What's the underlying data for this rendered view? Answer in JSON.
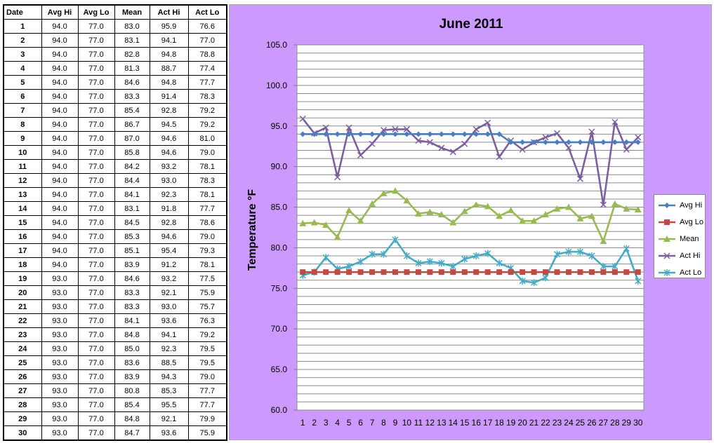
{
  "table": {
    "headers": [
      "Date",
      "Avg Hi",
      "Avg Lo",
      "Mean",
      "Act Hi",
      "Act Lo"
    ],
    "rows": [
      [
        "1",
        "94.0",
        "77.0",
        "83.0",
        "95.9",
        "76.6"
      ],
      [
        "2",
        "94.0",
        "77.0",
        "83.1",
        "94.1",
        "77.0"
      ],
      [
        "3",
        "94.0",
        "77.0",
        "82.8",
        "94.8",
        "78.8"
      ],
      [
        "4",
        "94.0",
        "77.0",
        "81.3",
        "88.7",
        "77.4"
      ],
      [
        "5",
        "94.0",
        "77.0",
        "84.6",
        "94.8",
        "77.7"
      ],
      [
        "6",
        "94.0",
        "77.0",
        "83.3",
        "91.4",
        "78.3"
      ],
      [
        "7",
        "94.0",
        "77.0",
        "85.4",
        "92.8",
        "79.2"
      ],
      [
        "8",
        "94.0",
        "77.0",
        "86.7",
        "94.5",
        "79.2"
      ],
      [
        "9",
        "94.0",
        "77.0",
        "87.0",
        "94.6",
        "81.0"
      ],
      [
        "10",
        "94.0",
        "77.0",
        "85.8",
        "94.6",
        "79.0"
      ],
      [
        "11",
        "94.0",
        "77.0",
        "84.2",
        "93.2",
        "78.1"
      ],
      [
        "12",
        "94.0",
        "77.0",
        "84.4",
        "93.0",
        "78.3"
      ],
      [
        "13",
        "94.0",
        "77.0",
        "84.1",
        "92.3",
        "78.1"
      ],
      [
        "14",
        "94.0",
        "77.0",
        "83.1",
        "91.8",
        "77.7"
      ],
      [
        "15",
        "94.0",
        "77.0",
        "84.5",
        "92.8",
        "78.6"
      ],
      [
        "16",
        "94.0",
        "77.0",
        "85.3",
        "94.6",
        "79.0"
      ],
      [
        "17",
        "94.0",
        "77.0",
        "85.1",
        "95.4",
        "79.3"
      ],
      [
        "18",
        "94.0",
        "77.0",
        "83.9",
        "91.2",
        "78.1"
      ],
      [
        "19",
        "93.0",
        "77.0",
        "84.6",
        "93.2",
        "77.5"
      ],
      [
        "20",
        "93.0",
        "77.0",
        "83.3",
        "92.1",
        "75.9"
      ],
      [
        "21",
        "93.0",
        "77.0",
        "83.3",
        "93.0",
        "75.7"
      ],
      [
        "22",
        "93.0",
        "77.0",
        "84.1",
        "93.6",
        "76.3"
      ],
      [
        "23",
        "93.0",
        "77.0",
        "84.8",
        "94.1",
        "79.2"
      ],
      [
        "24",
        "93.0",
        "77.0",
        "85.0",
        "92.3",
        "79.5"
      ],
      [
        "25",
        "93.0",
        "77.0",
        "83.6",
        "88.5",
        "79.5"
      ],
      [
        "26",
        "93.0",
        "77.0",
        "83.9",
        "94.3",
        "79.0"
      ],
      [
        "27",
        "93.0",
        "77.0",
        "80.8",
        "85.3",
        "77.7"
      ],
      [
        "28",
        "93.0",
        "77.0",
        "85.4",
        "95.5",
        "77.7"
      ],
      [
        "29",
        "93.0",
        "77.0",
        "84.8",
        "92.1",
        "79.9"
      ],
      [
        "30",
        "93.0",
        "77.0",
        "84.7",
        "93.6",
        "75.9"
      ]
    ]
  },
  "chart_data": {
    "type": "line",
    "title": "June 2011",
    "xlabel": "",
    "ylabel": "Temperature °F",
    "x": [
      1,
      2,
      3,
      4,
      5,
      6,
      7,
      8,
      9,
      10,
      11,
      12,
      13,
      14,
      15,
      16,
      17,
      18,
      19,
      20,
      21,
      22,
      23,
      24,
      25,
      26,
      27,
      28,
      29,
      30
    ],
    "ylim": [
      60.0,
      105.0
    ],
    "yticks": [
      "60.0",
      "65.0",
      "70.0",
      "75.0",
      "80.0",
      "85.0",
      "90.0",
      "95.0",
      "100.0",
      "105.0"
    ],
    "grid": "horizontal every 1.0",
    "legend_position": "right",
    "series": [
      {
        "name": "Avg Hi",
        "color": "#4a7ebb",
        "marker": "diamond",
        "values": [
          94.0,
          94.0,
          94.0,
          94.0,
          94.0,
          94.0,
          94.0,
          94.0,
          94.0,
          94.0,
          94.0,
          94.0,
          94.0,
          94.0,
          94.0,
          94.0,
          94.0,
          94.0,
          93.0,
          93.0,
          93.0,
          93.0,
          93.0,
          93.0,
          93.0,
          93.0,
          93.0,
          93.0,
          93.0,
          93.0
        ]
      },
      {
        "name": "Avg Lo",
        "color": "#be4b48",
        "marker": "square",
        "values": [
          77.0,
          77.0,
          77.0,
          77.0,
          77.0,
          77.0,
          77.0,
          77.0,
          77.0,
          77.0,
          77.0,
          77.0,
          77.0,
          77.0,
          77.0,
          77.0,
          77.0,
          77.0,
          77.0,
          77.0,
          77.0,
          77.0,
          77.0,
          77.0,
          77.0,
          77.0,
          77.0,
          77.0,
          77.0,
          77.0
        ]
      },
      {
        "name": "Mean",
        "color": "#98b954",
        "marker": "triangle",
        "values": [
          83.0,
          83.1,
          82.8,
          81.3,
          84.6,
          83.3,
          85.4,
          86.7,
          87.0,
          85.8,
          84.2,
          84.4,
          84.1,
          83.1,
          84.5,
          85.3,
          85.1,
          83.9,
          84.6,
          83.3,
          83.3,
          84.1,
          84.8,
          85.0,
          83.6,
          83.9,
          80.8,
          85.4,
          84.8,
          84.7
        ]
      },
      {
        "name": "Act Hi",
        "color": "#7d5fa0",
        "marker": "x",
        "values": [
          95.9,
          94.1,
          94.8,
          88.7,
          94.8,
          91.4,
          92.8,
          94.5,
          94.6,
          94.6,
          93.2,
          93.0,
          92.3,
          91.8,
          92.8,
          94.6,
          95.4,
          91.2,
          93.2,
          92.1,
          93.0,
          93.6,
          94.1,
          92.3,
          88.5,
          94.3,
          85.3,
          95.5,
          92.1,
          93.6
        ]
      },
      {
        "name": "Act Lo",
        "color": "#46aac5",
        "marker": "star",
        "values": [
          76.6,
          77.0,
          78.8,
          77.4,
          77.7,
          78.3,
          79.2,
          79.2,
          81.0,
          79.0,
          78.1,
          78.3,
          78.1,
          77.7,
          78.6,
          79.0,
          79.3,
          78.1,
          77.5,
          75.9,
          75.7,
          76.3,
          79.2,
          79.5,
          79.5,
          79.0,
          77.7,
          77.7,
          79.9,
          75.9
        ]
      }
    ]
  }
}
